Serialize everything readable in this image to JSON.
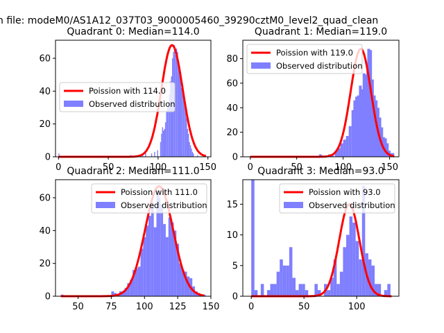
{
  "figure": {
    "suptitle": "n file: modeM0/AS1A12_037T03_9000005460_39290cztM0_level2_quad_clean"
  },
  "colors": {
    "histogram": "#7f7fff",
    "poisson": "#ff0000",
    "legend_frame": "#cccccc"
  },
  "chart_data": [
    {
      "type": "histogram",
      "title": "Quadrant 0: Median=114.0",
      "xlim": [
        -3,
        153
      ],
      "ylim": [
        0,
        71
      ],
      "xticks": [
        0,
        50,
        100,
        150
      ],
      "yticks": [
        0,
        20,
        40,
        60
      ],
      "legend": {
        "position": "center-left",
        "line_label": "Poission with 114.0",
        "hist_label": "Observed distribution"
      },
      "poisson_mean": 114,
      "poisson_peak": 68,
      "poisson_range": [
        0,
        148
      ],
      "bin_width": 3,
      "bins": [
        [
          0,
          2
        ],
        [
          72,
          1
        ],
        [
          72,
          1
        ],
        [
          78,
          1
        ],
        [
          84,
          1
        ],
        [
          87,
          3
        ],
        [
          93,
          2
        ],
        [
          96,
          3
        ],
        [
          99,
          4
        ],
        [
          102,
          9
        ],
        [
          103,
          14
        ],
        [
          104,
          18
        ],
        [
          105,
          16
        ],
        [
          106,
          17
        ],
        [
          107,
          21
        ],
        [
          108,
          28
        ],
        [
          109,
          30
        ],
        [
          110,
          33
        ],
        [
          111,
          38
        ],
        [
          112,
          46
        ],
        [
          113,
          49
        ],
        [
          114,
          60
        ],
        [
          115,
          64
        ],
        [
          116,
          68
        ],
        [
          117,
          62
        ],
        [
          118,
          66
        ],
        [
          119,
          64
        ],
        [
          120,
          56
        ],
        [
          121,
          52
        ],
        [
          122,
          48
        ],
        [
          123,
          42
        ],
        [
          124,
          40
        ],
        [
          125,
          36
        ],
        [
          126,
          32
        ],
        [
          127,
          28
        ],
        [
          128,
          24
        ],
        [
          129,
          17
        ],
        [
          130,
          14
        ],
        [
          131,
          9
        ],
        [
          132,
          7
        ],
        [
          133,
          5
        ],
        [
          134,
          3
        ],
        [
          135,
          2
        ],
        [
          139,
          1
        ],
        [
          145,
          1
        ],
        [
          147,
          1
        ]
      ],
      "bin_width_fine": 1
    },
    {
      "type": "histogram",
      "title": "Quadrant 1: Median=119.0",
      "xlim": [
        -8,
        160
      ],
      "ylim": [
        0,
        95
      ],
      "xticks": [
        0,
        50,
        100,
        150
      ],
      "yticks": [
        0,
        20,
        40,
        60,
        80
      ],
      "legend": {
        "position": "top-left",
        "line_label": "Poission with 119.0",
        "hist_label": "Observed distribution"
      },
      "poisson_mean": 119,
      "poisson_peak": 88,
      "poisson_range": [
        0,
        155
      ],
      "bin_width_fine": 3,
      "bins": [
        [
          74,
          2
        ],
        [
          77,
          1
        ],
        [
          80,
          1
        ],
        [
          84,
          2
        ],
        [
          87,
          1
        ],
        [
          91,
          5
        ],
        [
          94,
          7
        ],
        [
          97,
          11
        ],
        [
          100,
          14
        ],
        [
          103,
          17
        ],
        [
          106,
          25
        ],
        [
          109,
          38
        ],
        [
          111,
          46
        ],
        [
          113,
          49
        ],
        [
          115,
          50
        ],
        [
          117,
          58
        ],
        [
          119,
          55
        ],
        [
          121,
          68
        ],
        [
          123,
          67
        ],
        [
          125,
          75
        ],
        [
          126,
          88
        ],
        [
          128,
          87
        ],
        [
          130,
          63
        ],
        [
          132,
          50
        ],
        [
          134,
          46
        ],
        [
          136,
          40
        ],
        [
          138,
          32
        ],
        [
          140,
          24
        ],
        [
          142,
          16
        ],
        [
          144,
          15
        ],
        [
          146,
          11
        ],
        [
          148,
          5
        ],
        [
          150,
          3
        ],
        [
          152,
          3
        ]
      ]
    },
    {
      "type": "histogram",
      "title": "Quadrant 2: Median=111.0",
      "xlim": [
        33,
        150
      ],
      "ylim": [
        0,
        71
      ],
      "xticks": [
        50,
        75,
        100,
        125,
        150
      ],
      "yticks": [
        0,
        20,
        40,
        60
      ],
      "legend": {
        "position": "top-right",
        "line_label": "Poission with 111.0",
        "hist_label": "Observed distribution"
      },
      "poisson_mean": 111,
      "poisson_peak": 67,
      "poisson_range": [
        37,
        145
      ],
      "bin_width_fine": 2,
      "bins": [
        [
          37,
          1
        ],
        [
          75,
          3
        ],
        [
          77,
          2
        ],
        [
          79,
          1
        ],
        [
          81,
          3
        ],
        [
          83,
          3
        ],
        [
          85,
          5
        ],
        [
          87,
          8
        ],
        [
          89,
          10
        ],
        [
          91,
          16
        ],
        [
          93,
          17
        ],
        [
          95,
          18
        ],
        [
          97,
          29
        ],
        [
          99,
          36
        ],
        [
          101,
          43
        ],
        [
          103,
          49
        ],
        [
          105,
          57
        ],
        [
          107,
          42
        ],
        [
          109,
          64
        ],
        [
          110,
          60
        ],
        [
          112,
          56
        ],
        [
          114,
          44
        ],
        [
          116,
          36
        ],
        [
          118,
          48
        ],
        [
          120,
          45
        ],
        [
          122,
          40
        ],
        [
          124,
          32
        ],
        [
          126,
          20
        ],
        [
          128,
          16
        ],
        [
          130,
          15
        ],
        [
          132,
          12
        ],
        [
          134,
          11
        ],
        [
          136,
          6
        ],
        [
          138,
          3
        ],
        [
          140,
          2
        ],
        [
          142,
          1
        ],
        [
          144,
          1
        ]
      ]
    },
    {
      "type": "histogram",
      "title": "Quadrant 3: Median=93.0",
      "xlim": [
        -8,
        140
      ],
      "ylim": [
        0,
        19
      ],
      "xticks": [
        0,
        50,
        100
      ],
      "yticks": [
        0,
        5,
        10,
        15
      ],
      "legend": {
        "position": "top-right",
        "line_label": "Poission with 93.0",
        "hist_label": "Observed distribution"
      },
      "poisson_mean": 93,
      "poisson_peak": 15,
      "poisson_range": [
        0,
        133
      ],
      "bin_width_fine": 3,
      "bins": [
        [
          0,
          19
        ],
        [
          3,
          1
        ],
        [
          9,
          2
        ],
        [
          15,
          1
        ],
        [
          18,
          2
        ],
        [
          21,
          2
        ],
        [
          24,
          4
        ],
        [
          27,
          6
        ],
        [
          30,
          5
        ],
        [
          33,
          5
        ],
        [
          36,
          8
        ],
        [
          39,
          3
        ],
        [
          42,
          1
        ],
        [
          45,
          2
        ],
        [
          48,
          2
        ],
        [
          51,
          1
        ],
        [
          60,
          2
        ],
        [
          63,
          1
        ],
        [
          69,
          2
        ],
        [
          72,
          1
        ],
        [
          75,
          3
        ],
        [
          78,
          6
        ],
        [
          81,
          2
        ],
        [
          84,
          4
        ],
        [
          87,
          8
        ],
        [
          90,
          10
        ],
        [
          93,
          13
        ],
        [
          96,
          12
        ],
        [
          99,
          9
        ],
        [
          102,
          6
        ],
        [
          105,
          18
        ],
        [
          108,
          7
        ],
        [
          111,
          6
        ],
        [
          114,
          5
        ],
        [
          117,
          2
        ],
        [
          120,
          2
        ],
        [
          126,
          1
        ],
        [
          129,
          2
        ]
      ]
    }
  ]
}
